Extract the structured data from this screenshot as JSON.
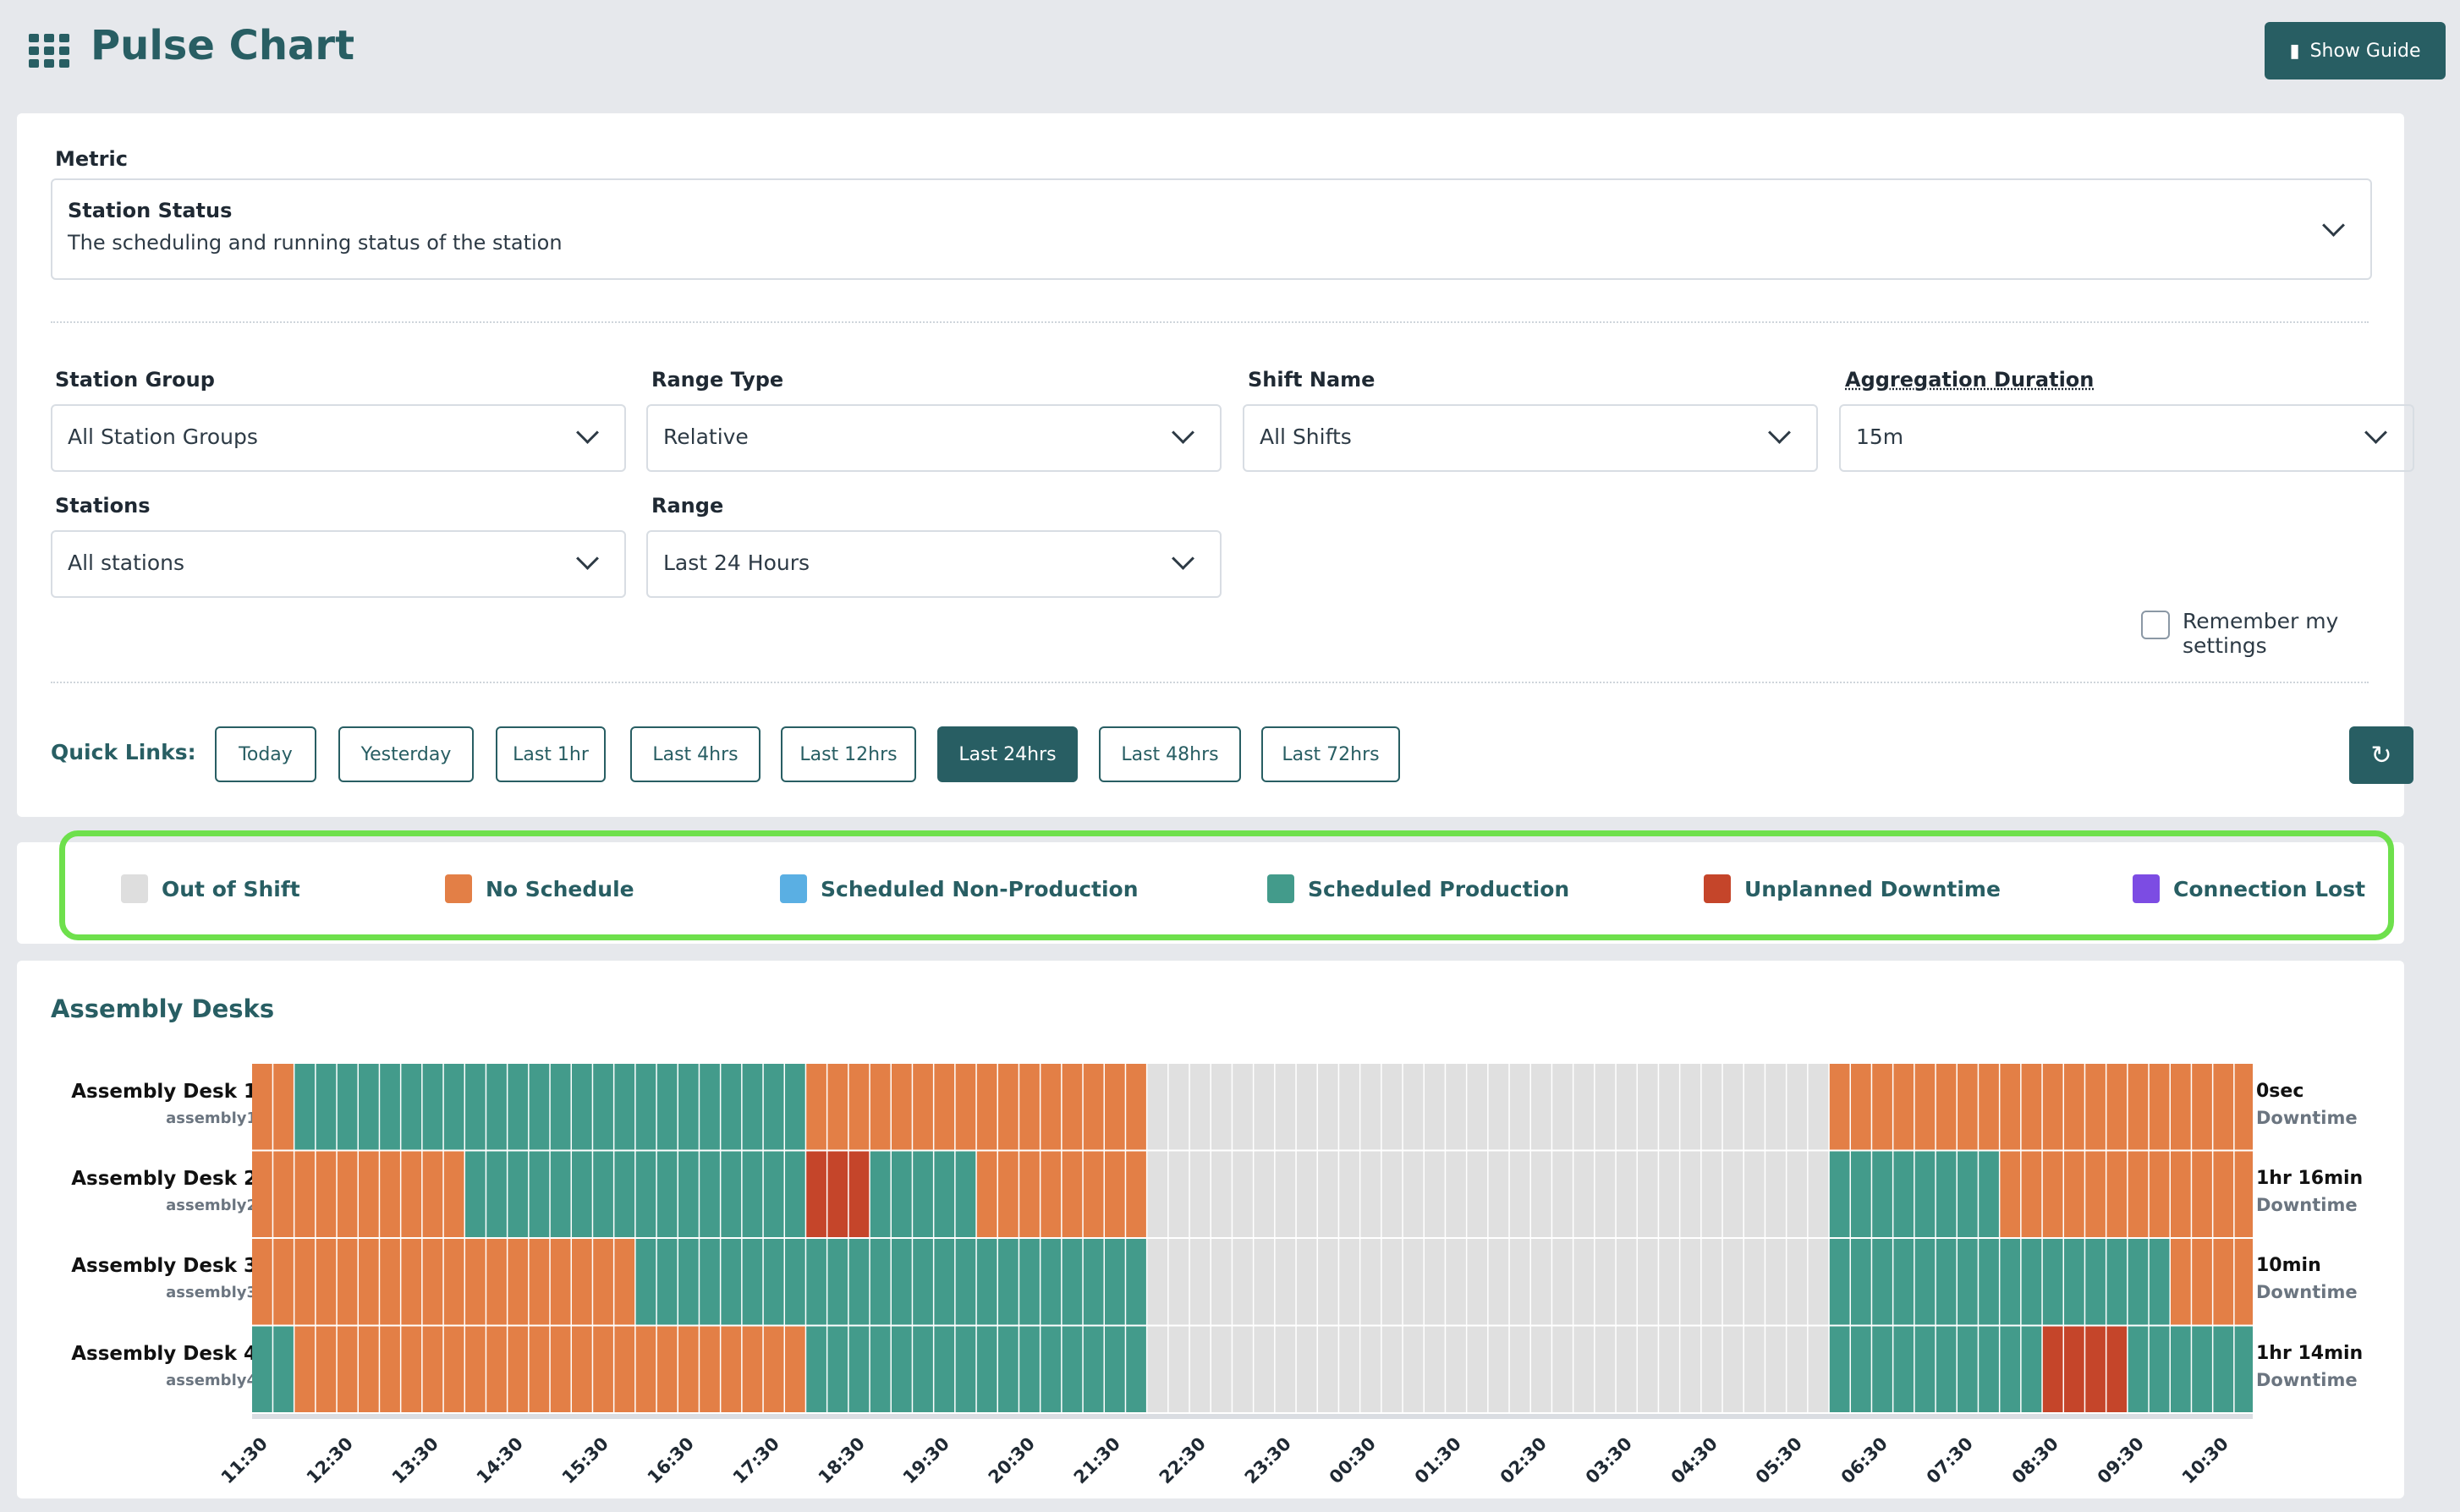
{
  "header": {
    "title": "Pulse Chart",
    "guide_label": "Show Guide"
  },
  "metric": {
    "label": "Metric",
    "title": "Station Status",
    "description": "The scheduling and running status of the station"
  },
  "filters": {
    "station_group": {
      "label": "Station Group",
      "value": "All Station Groups"
    },
    "range_type": {
      "label": "Range Type",
      "value": "Relative"
    },
    "shift_name": {
      "label": "Shift Name",
      "value": "All Shifts"
    },
    "aggregation": {
      "label": "Aggregation Duration",
      "value": "15m"
    },
    "stations": {
      "label": "Stations",
      "value": "All stations"
    },
    "range": {
      "label": "Range",
      "value": "Last 24 Hours"
    }
  },
  "remember_label": "Remember my settings",
  "quick_links": {
    "label": "Quick Links:",
    "items": [
      "Today",
      "Yesterday",
      "Last 1hr",
      "Last 4hrs",
      "Last 12hrs",
      "Last 24hrs",
      "Last 48hrs",
      "Last 72hrs"
    ],
    "active": "Last 24hrs"
  },
  "colors": {
    "O": "#e0e0e0",
    "N": "#e37f46",
    "S": "#5aafe3",
    "P": "#439b8b",
    "U": "#c5452a",
    "C": "#7c4ce3"
  },
  "legend": [
    {
      "label": "Out of Shift",
      "color": "#dedede"
    },
    {
      "label": "No Schedule",
      "color": "#e37f46"
    },
    {
      "label": "Scheduled Non-Production",
      "color": "#5aafe3"
    },
    {
      "label": "Scheduled Production",
      "color": "#439b8b"
    },
    {
      "label": "Unplanned Downtime",
      "color": "#c5452a"
    },
    {
      "label": "Connection Lost",
      "color": "#7c4ce3"
    }
  ],
  "chart": {
    "title": "Assembly Desks",
    "rows": [
      {
        "name": "Assembly Desk 1",
        "id": "assembly1",
        "downtime": "0sec",
        "downtime_label": "Downtime",
        "segments": [
          [
            "N",
            2
          ],
          [
            "P",
            24
          ],
          [
            "N",
            16
          ],
          [
            "O",
            32
          ],
          [
            "N",
            20
          ]
        ]
      },
      {
        "name": "Assembly Desk 2",
        "id": "assembly2",
        "downtime": "1hr 16min",
        "downtime_label": "Downtime",
        "segments": [
          [
            "N",
            10
          ],
          [
            "P",
            16
          ],
          [
            "U",
            3
          ],
          [
            "P",
            5
          ],
          [
            "N",
            8
          ],
          [
            "O",
            32
          ],
          [
            "P",
            8
          ],
          [
            "N",
            12
          ]
        ]
      },
      {
        "name": "Assembly Desk 3",
        "id": "assembly3",
        "downtime": "10min",
        "downtime_label": "Downtime",
        "segments": [
          [
            "N",
            18
          ],
          [
            "P",
            24
          ],
          [
            "O",
            32
          ],
          [
            "P",
            16
          ],
          [
            "N",
            4
          ]
        ]
      },
      {
        "name": "Assembly Desk 4",
        "id": "assembly4",
        "downtime": "1hr 14min",
        "downtime_label": "Downtime",
        "segments": [
          [
            "P",
            2
          ],
          [
            "N",
            24
          ],
          [
            "P",
            16
          ],
          [
            "O",
            32
          ],
          [
            "P",
            10
          ],
          [
            "U",
            4
          ],
          [
            "P",
            6
          ]
        ]
      }
    ],
    "x_ticks": [
      "11:30",
      "12:30",
      "13:30",
      "14:30",
      "15:30",
      "16:30",
      "17:30",
      "18:30",
      "19:30",
      "20:30",
      "21:30",
      "22:30",
      "23:30",
      "00:30",
      "01:30",
      "02:30",
      "03:30",
      "04:30",
      "05:30",
      "06:30",
      "07:30",
      "08:30",
      "09:30",
      "10:30"
    ]
  }
}
